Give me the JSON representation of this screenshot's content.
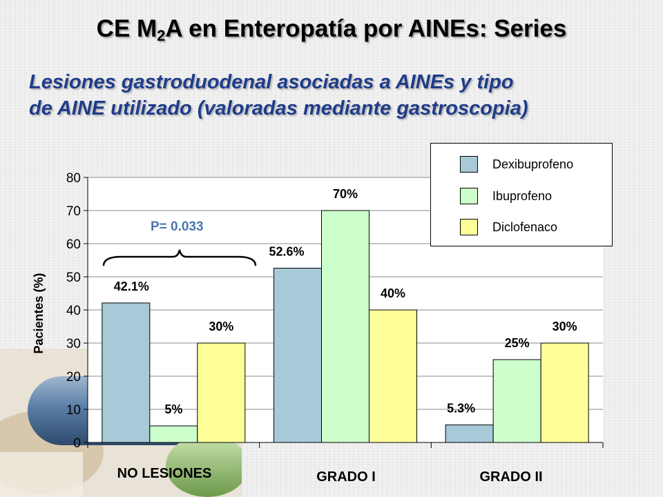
{
  "slide": {
    "title_main": "CE M",
    "title_sub": "2",
    "title_rest": "A en Enteropatía por AINEs: Series",
    "subtitle_line1": "Lesiones gastroduodenal asociadas a AINEs y tipo",
    "subtitle_line2": "de AINE utilizado (valoradas mediante gastroscopia)",
    "pvalue": "P= 0.033"
  },
  "colors": {
    "Dexibuprofeno": "#a7c9d8",
    "Ibuprofeno": "#ccffcc",
    "Diclofenaco": "#ffff99"
  },
  "legend": {
    "position": "top-right",
    "items": [
      "Dexibuprofeno",
      "Ibuprofeno",
      "Diclofenaco"
    ]
  },
  "chart_data": {
    "type": "bar",
    "categories": [
      "NO LESIONES",
      "GRADO  I",
      "GRADO  II"
    ],
    "series": [
      {
        "name": "Dexibuprofeno",
        "values": [
          42.1,
          52.6,
          5.3
        ],
        "labels": [
          "42.1%",
          "52.6%",
          "5.3%"
        ]
      },
      {
        "name": "Ibuprofeno",
        "values": [
          5,
          70,
          25
        ],
        "labels": [
          "5%",
          "70%",
          "25%"
        ]
      },
      {
        "name": "Diclofenaco",
        "values": [
          30,
          40,
          30
        ],
        "labels": [
          "30%",
          "40%",
          "30%"
        ]
      }
    ],
    "ylabel": "Pacientes    (%)",
    "ylim": [
      0,
      80
    ],
    "yticks": [
      0,
      10,
      20,
      30,
      40,
      50,
      60,
      70,
      80
    ],
    "grid": true
  }
}
